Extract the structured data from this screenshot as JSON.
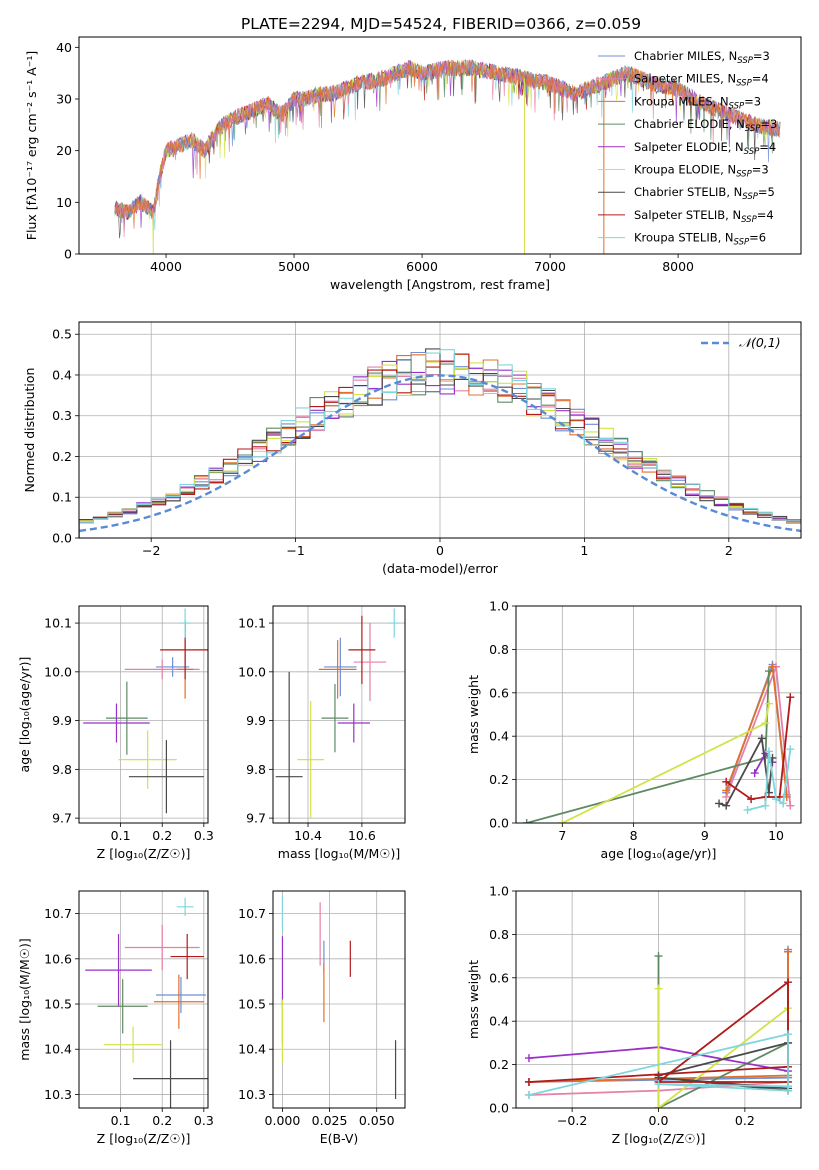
{
  "figure": {
    "title": "PLATE=2294, MJD=54524, FIBERID=0366, z=0.059"
  },
  "models": [
    {
      "name": "Chabrier MILES",
      "nssp": "3",
      "color": "#6f8fd6"
    },
    {
      "name": "Salpeter MILES",
      "nssp": "4",
      "color": "#e680a8"
    },
    {
      "name": "Kroupa MILES",
      "nssp": "3",
      "color": "#e0702a"
    },
    {
      "name": "Chabrier ELODIE",
      "nssp": "3",
      "color": "#5e8a63"
    },
    {
      "name": "Salpeter ELODIE",
      "nssp": "4",
      "color": "#9b30c8"
    },
    {
      "name": "Kroupa ELODIE",
      "nssp": "3",
      "color": "#d2e34a"
    },
    {
      "name": "Chabrier STELIB",
      "nssp": "5",
      "color": "#4a4a4a"
    },
    {
      "name": "Salpeter STELIB",
      "nssp": "4",
      "color": "#b01a1a"
    },
    {
      "name": "Kroupa STELIB",
      "nssp": "6",
      "color": "#7fd6dd"
    }
  ],
  "chart_data": [
    {
      "id": "spectrum",
      "type": "line",
      "xlabel": "wavelength [Angstrom, rest frame]",
      "ylabel": "Flux [fλ10⁻¹⁷ erg cm⁻² s⁻¹ A⁻¹]",
      "xlim": [
        3320,
        8960
      ],
      "ylim": [
        0,
        42
      ],
      "xticks": [
        "4000",
        "5000",
        "6000",
        "7000",
        "8000"
      ],
      "yticks": [
        "0",
        "10",
        "20",
        "30",
        "40"
      ],
      "grid": false,
      "legend_position": "right",
      "trend": {
        "x": [
          3600,
          3700,
          3800,
          3900,
          3950,
          4000,
          4100,
          4200,
          4300,
          4400,
          4500,
          4600,
          4700,
          4800,
          4900,
          5000,
          5100,
          5200,
          5300,
          5500,
          5700,
          5900,
          6000,
          6200,
          6400,
          6600,
          6800,
          7000,
          7200,
          7400,
          7600,
          7800,
          8000,
          8200,
          8400,
          8600,
          8800
        ],
        "y": [
          9,
          8,
          10,
          8,
          15,
          20,
          21,
          22,
          20,
          24,
          26,
          27,
          28,
          29,
          27,
          30,
          30,
          31,
          31,
          33,
          34,
          36,
          35,
          36,
          36,
          35,
          34,
          33,
          31,
          33,
          35,
          33,
          32,
          29,
          27,
          25,
          24
        ]
      }
    },
    {
      "id": "residuals",
      "type": "histogram",
      "xlabel": "(data-model)/error",
      "ylabel": "Normed distribution",
      "xlim": [
        -2.5,
        2.5
      ],
      "ylim": [
        0,
        0.53
      ],
      "xticks": [
        "−2",
        "−1",
        "0",
        "1",
        "2"
      ],
      "yticks": [
        "0.0",
        "0.1",
        "0.2",
        "0.3",
        "0.4",
        "0.5"
      ],
      "grid": true,
      "legend_label": "𝒩(0,1)",
      "legend_position": "top-right",
      "bin_width": 0.1
    },
    {
      "id": "age_vs_Z",
      "type": "errorbar",
      "xlabel": "Z [log₁₀(Z/Z☉)]",
      "ylabel": "age  [log₁₀(age/yr)]",
      "xlim": [
        0.0,
        0.31
      ],
      "ylim": [
        9.69,
        10.135
      ],
      "xticks": [
        "0.1",
        "0.2",
        "0.3"
      ],
      "xtick_values": [
        0.1,
        0.2,
        0.3
      ],
      "yticks": [
        "9.7",
        "9.8",
        "9.9",
        "10.0",
        "10.1"
      ],
      "ytick_values": [
        9.7,
        9.8,
        9.9,
        10.0,
        10.1
      ],
      "points": [
        {
          "x": 0.225,
          "xerr": 0.04,
          "y": 10.01,
          "yerr": 0.02
        },
        {
          "x": 0.2,
          "xerr": 0.09,
          "y": 10.005,
          "yerr": 0.02
        },
        {
          "x": 0.255,
          "xerr": 0.02,
          "y": 10.005,
          "yerr": 0.06
        },
        {
          "x": 0.115,
          "xerr": 0.05,
          "y": 9.905,
          "yerr": 0.075
        },
        {
          "x": 0.09,
          "xerr": 0.08,
          "y": 9.895,
          "yerr": 0.04
        },
        {
          "x": 0.165,
          "xerr": 0.07,
          "y": 9.82,
          "yerr": 0.06
        },
        {
          "x": 0.21,
          "xerr": 0.09,
          "y": 9.785,
          "yerr": 0.075
        },
        {
          "x": 0.255,
          "xerr": 0.06,
          "y": 10.045,
          "yerr": 0.06
        },
        {
          "x": 0.255,
          "xerr": 0.015,
          "y": 10.1,
          "yerr": 0.03
        }
      ]
    },
    {
      "id": "age_vs_mass",
      "type": "errorbar",
      "xlabel": "mass [log₁₀(M/M☉)]",
      "ylabel": "",
      "xlim": [
        10.27,
        10.76
      ],
      "ylim": [
        9.69,
        10.135
      ],
      "xticks": [
        "10.4",
        "10.6"
      ],
      "xtick_values": [
        10.4,
        10.6
      ],
      "yticks": [
        "9.7",
        "9.8",
        "9.9",
        "10.0",
        "10.1"
      ],
      "ytick_values": [
        9.7,
        9.8,
        9.9,
        10.0,
        10.1
      ],
      "points": [
        {
          "x": 10.52,
          "xerr": 0.06,
          "y": 10.01,
          "yerr": 0.06
        },
        {
          "x": 10.63,
          "xerr": 0.06,
          "y": 10.02,
          "yerr": 0.08
        },
        {
          "x": 10.51,
          "xerr": 0.07,
          "y": 10.005,
          "yerr": 0.06
        },
        {
          "x": 10.5,
          "xerr": 0.05,
          "y": 9.905,
          "yerr": 0.07
        },
        {
          "x": 10.57,
          "xerr": 0.06,
          "y": 9.895,
          "yerr": 0.04
        },
        {
          "x": 10.41,
          "xerr": 0.05,
          "y": 9.82,
          "yerr": 0.12
        },
        {
          "x": 10.33,
          "xerr": 0.05,
          "y": 9.785,
          "yerr": 0.215
        },
        {
          "x": 10.6,
          "xerr": 0.05,
          "y": 10.045,
          "yerr": 0.07
        },
        {
          "x": 10.72,
          "xerr": 0.02,
          "y": 10.1,
          "yerr": 0.03
        }
      ]
    },
    {
      "id": "mass_weight_vs_age",
      "type": "line",
      "xlabel": "age  [log₁₀(age/yr)]",
      "ylabel": "mass weight",
      "xlim": [
        6.35,
        10.35
      ],
      "ylim": [
        0,
        1.0
      ],
      "xticks": [
        "7",
        "8",
        "9",
        "10"
      ],
      "xtick_values": [
        7,
        8,
        9,
        10
      ],
      "yticks": [
        "0.0",
        "0.2",
        "0.4",
        "0.6",
        "0.8",
        "1.0"
      ],
      "ytick_values": [
        0,
        0.2,
        0.4,
        0.6,
        0.8,
        1.0
      ],
      "grid": true,
      "series": [
        {
          "x": [
            9.3,
            9.95,
            10.15
          ],
          "y": [
            0.14,
            0.73,
            0.13
          ]
        },
        {
          "x": [
            9.3,
            10.0,
            10.2
          ],
          "y": [
            0.12,
            0.72,
            0.08
          ]
        },
        {
          "x": [
            9.3,
            9.95,
            10.15
          ],
          "y": [
            0.15,
            0.72,
            0.12
          ]
        },
        {
          "x": [
            6.5,
            9.85,
            9.9
          ],
          "y": [
            0.0,
            0.3,
            0.7
          ]
        },
        {
          "x": [
            9.7,
            9.85,
            9.95
          ],
          "y": [
            0.23,
            0.32,
            0.28
          ]
        },
        {
          "x": [
            7.0,
            9.85,
            9.9
          ],
          "y": [
            0.0,
            0.46,
            0.55
          ]
        },
        {
          "x": [
            9.2,
            9.3,
            9.8,
            9.9,
            9.95
          ],
          "y": [
            0.09,
            0.08,
            0.39,
            0.14,
            0.3
          ]
        },
        {
          "x": [
            9.3,
            9.65,
            9.85,
            10.05,
            10.2
          ],
          "y": [
            0.19,
            0.11,
            0.12,
            0.12,
            0.58
          ]
        },
        {
          "x": [
            9.6,
            9.85,
            9.9,
            10.0,
            10.1,
            10.2
          ],
          "y": [
            0.06,
            0.08,
            0.33,
            0.11,
            0.09,
            0.34
          ]
        }
      ]
    },
    {
      "id": "mass_vs_Z",
      "type": "errorbar",
      "xlabel": "Z [log₁₀(Z/Z☉)]",
      "ylabel": "mass [log₁₀(M/M☉)]",
      "xlim": [
        0.0,
        0.31
      ],
      "ylim": [
        10.27,
        10.75
      ],
      "xticks": [
        "0.1",
        "0.2",
        "0.3"
      ],
      "xtick_values": [
        0.1,
        0.2,
        0.3
      ],
      "yticks": [
        "10.3",
        "10.4",
        "10.5",
        "10.6",
        "10.7"
      ],
      "ytick_values": [
        10.3,
        10.4,
        10.5,
        10.6,
        10.7
      ],
      "points": [
        {
          "x": 0.245,
          "xerr": 0.06,
          "y": 10.52,
          "yerr": 0.04
        },
        {
          "x": 0.2,
          "xerr": 0.09,
          "y": 10.625,
          "yerr": 0.05
        },
        {
          "x": 0.24,
          "xerr": 0.06,
          "y": 10.505,
          "yerr": 0.06
        },
        {
          "x": 0.105,
          "xerr": 0.06,
          "y": 10.495,
          "yerr": 0.06
        },
        {
          "x": 0.095,
          "xerr": 0.08,
          "y": 10.575,
          "yerr": 0.08
        },
        {
          "x": 0.13,
          "xerr": 0.07,
          "y": 10.41,
          "yerr": 0.04
        },
        {
          "x": 0.22,
          "xerr": 0.09,
          "y": 10.335,
          "yerr": 0.085
        },
        {
          "x": 0.26,
          "xerr": 0.04,
          "y": 10.605,
          "yerr": 0.05
        },
        {
          "x": 0.255,
          "xerr": 0.02,
          "y": 10.715,
          "yerr": 0.02
        }
      ]
    },
    {
      "id": "mass_vs_EBV",
      "type": "errorbar",
      "xlabel": "E(B-V)",
      "ylabel": "",
      "xlim": [
        -0.005,
        0.065
      ],
      "ylim": [
        10.27,
        10.75
      ],
      "xticks": [
        "0.000",
        "0.025",
        "0.050"
      ],
      "xtick_values": [
        0.0,
        0.025,
        0.05
      ],
      "yticks": [
        "10.3",
        "10.4",
        "10.5",
        "10.6",
        "10.7"
      ],
      "ytick_values": [
        10.3,
        10.4,
        10.5,
        10.6,
        10.7
      ],
      "points": [
        {
          "x": 0.022,
          "xerr": 0.0,
          "y": 10.605,
          "yerr": 0.035
        },
        {
          "x": 0.02,
          "xerr": 0.0,
          "y": 10.655,
          "yerr": 0.07
        },
        {
          "x": 0.022,
          "xerr": 0.0,
          "y": 10.525,
          "yerr": 0.065
        },
        {
          "x": 0.0,
          "xerr": 0.0,
          "y": 10.46,
          "yerr": 0.05
        },
        {
          "x": 0.0,
          "xerr": 0.0,
          "y": 10.575,
          "yerr": 0.075
        },
        {
          "x": 0.0,
          "xerr": 0.0,
          "y": 10.44,
          "yerr": 0.07
        },
        {
          "x": 0.06,
          "xerr": 0.0,
          "y": 10.355,
          "yerr": 0.065
        },
        {
          "x": 0.036,
          "xerr": 0.0,
          "y": 10.6,
          "yerr": 0.04
        },
        {
          "x": 0.0,
          "xerr": 0.0,
          "y": 10.7,
          "yerr": 0.04
        }
      ]
    },
    {
      "id": "mass_weight_vs_Z",
      "type": "line",
      "xlabel": "Z [log₁₀(Z/Z☉)]",
      "ylabel": "mass weight",
      "xlim": [
        -0.33,
        0.33
      ],
      "ylim": [
        0,
        1.0
      ],
      "xticks": [
        "−0.2",
        "0.0",
        "0.2"
      ],
      "xtick_values": [
        -0.2,
        0.0,
        0.2
      ],
      "yticks": [
        "0.0",
        "0.2",
        "0.4",
        "0.6",
        "0.8",
        "1.0"
      ],
      "ytick_values": [
        0,
        0.2,
        0.4,
        0.6,
        0.8,
        1.0
      ],
      "grid": true,
      "series": [
        {
          "x": [
            -0.3,
            0.3,
            0.3
          ],
          "y": [
            0.12,
            0.14,
            0.73
          ]
        },
        {
          "x": [
            -0.3,
            0.0,
            0.3,
            0.3
          ],
          "y": [
            0.06,
            0.08,
            0.12,
            0.72
          ]
        },
        {
          "x": [
            -0.3,
            0.3,
            0.3
          ],
          "y": [
            0.12,
            0.15,
            0.72
          ]
        },
        {
          "x": [
            0.0,
            0.0,
            0.3,
            0.3
          ],
          "y": [
            0.7,
            0.0,
            0.3,
            0.1
          ]
        },
        {
          "x": [
            -0.3,
            0.0,
            0.3
          ],
          "y": [
            0.23,
            0.28,
            0.17
          ]
        },
        {
          "x": [
            0.0,
            0.0,
            0.3
          ],
          "y": [
            0.55,
            0.0,
            0.46
          ]
        },
        {
          "x": [
            0.0,
            0.3,
            0.3,
            0.0,
            0.3
          ],
          "y": [
            0.15,
            0.3,
            0.09,
            0.14,
            0.08
          ]
        },
        {
          "x": [
            -0.3,
            0.3,
            0.3,
            0.0,
            0.3
          ],
          "y": [
            0.12,
            0.19,
            0.58,
            0.12,
            0.12
          ]
        },
        {
          "x": [
            -0.3,
            0.3,
            0.3,
            0.0,
            0.3
          ],
          "y": [
            0.06,
            0.34,
            0.08,
            0.11,
            0.1
          ]
        }
      ]
    }
  ]
}
